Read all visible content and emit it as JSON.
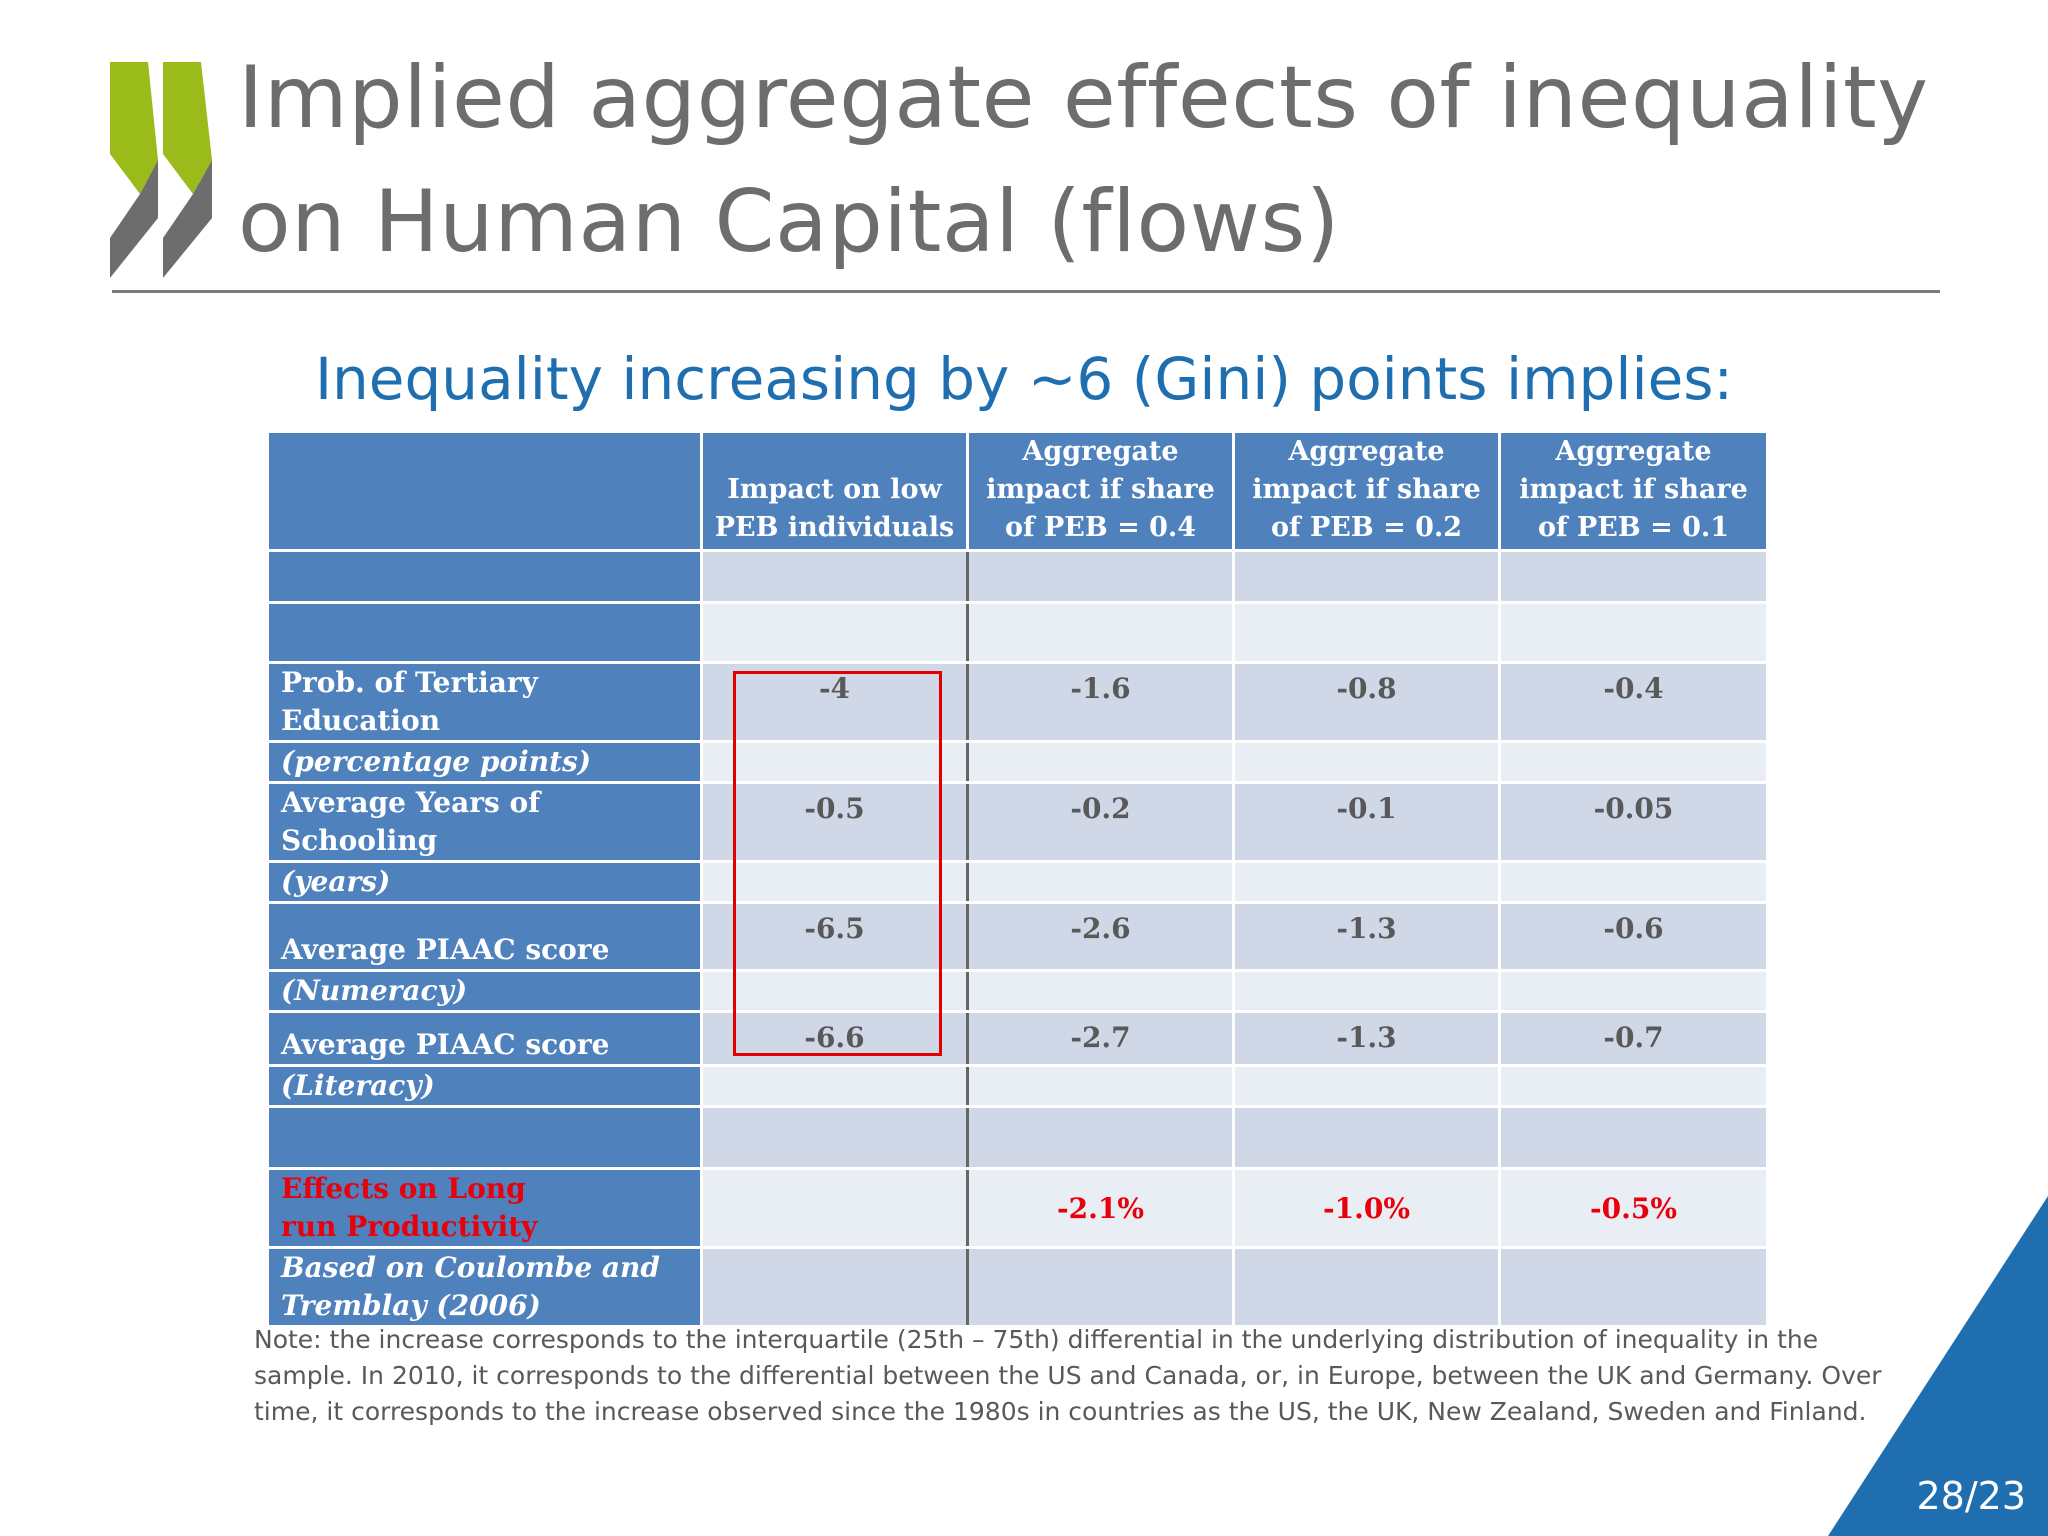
{
  "slide": {
    "title_line1": "Implied aggregate effects of inequality",
    "title_line2": "on Human Capital (flows)",
    "subtitle": "Inequality increasing by ~6 (Gini) points implies:",
    "page_number": "28/23",
    "note": "Note: the increase corresponds to the interquartile (25th – 75th) differential in the underlying distribution of inequality in the sample. In 2010, it corresponds to the differential between the US and Canada, or, in Europe, between the UK and Germany. Over time, it corresponds to the increase  observed since the 1980s in countries as the US, the UK, New Zealand, Sweden and Finland."
  },
  "table": {
    "headers": [
      "",
      "Impact on low PEB individuals",
      "Aggregate impact if share of PEB = 0.4",
      "Aggregate impact if share of PEB = 0.2",
      "Aggregate impact if share of PEB = 0.1"
    ],
    "rows": [
      {
        "label": "Prob. of Tertiary Education",
        "sub": "(percentage points)",
        "values": [
          "-4",
          "-1.6",
          "-0.8",
          "-0.4"
        ]
      },
      {
        "label": "Average Years of Schooling",
        "sub": "(years)",
        "values": [
          "-0.5",
          "-0.2",
          "-0.1",
          "-0.05"
        ]
      },
      {
        "label": "Average PIAAC score",
        "sub": "(Numeracy)",
        "values": [
          "-6.5",
          "-2.6",
          "-1.3",
          "-0.6"
        ]
      },
      {
        "label": "Average PIAAC score",
        "sub": "(Literacy)",
        "values": [
          "-6.6",
          "-2.7",
          "-1.3",
          "-0.7"
        ]
      }
    ],
    "productivity": {
      "label": "Effects on Long run Productivity",
      "values": [
        "",
        "-2.1%",
        "-1.0%",
        "-0.5%"
      ]
    },
    "source": "Based on  Coulombe and Tremblay (2006)"
  },
  "colors": {
    "header_blue": "#4f81bd",
    "cell_dark": "#d0d8e8",
    "cell_light": "#e9edf4",
    "highlight_red": "#e00000",
    "logo_green": "#9bbb1a",
    "logo_gray": "#6d6d6d",
    "corner_blue": "#1f6fb0"
  }
}
